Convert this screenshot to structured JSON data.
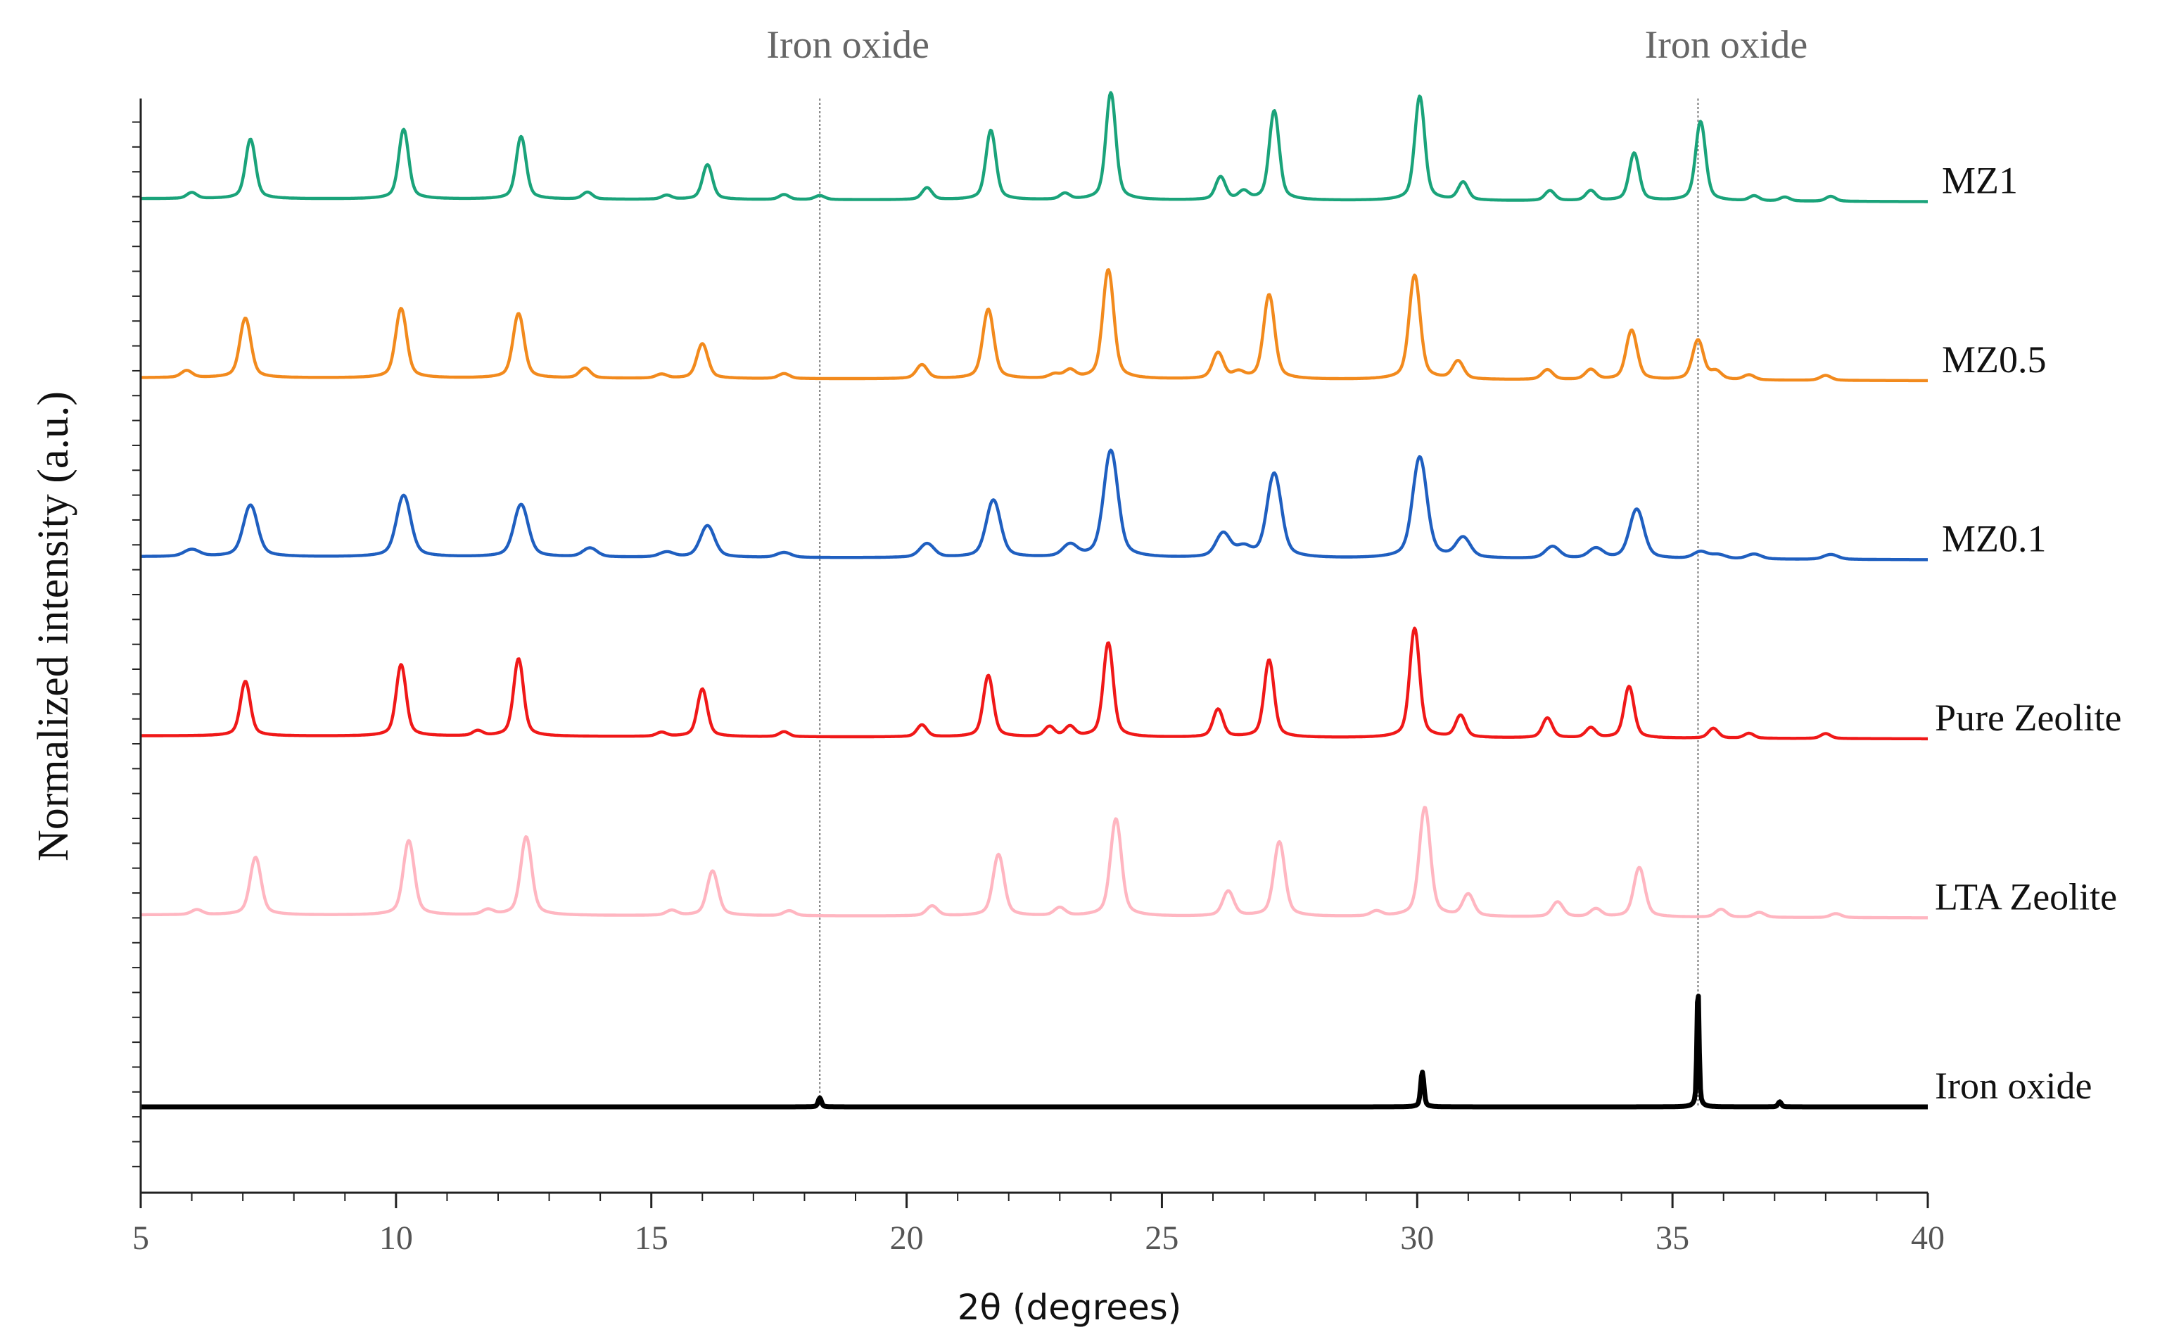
{
  "chart_data": {
    "type": "line",
    "title": "",
    "xlabel": "2θ (degrees)",
    "ylabel": "Normalized intensity (a.u.)",
    "xlim": [
      5,
      40
    ],
    "ylim": [
      0,
      11
    ],
    "x_ticks": [
      "5",
      "10",
      "15",
      "20",
      "25",
      "30",
      "35",
      "40"
    ],
    "x_tick_values": [
      5,
      10,
      15,
      20,
      25,
      30,
      35,
      40
    ],
    "y_tick_labels_visible": false,
    "grid": false,
    "reference_lines": [
      {
        "x": 18.3,
        "label": "Iron oxide"
      },
      {
        "x": 35.5,
        "label": "Iron oxide"
      }
    ],
    "series": [
      {
        "name": "MZ1",
        "color": "#1aa37a",
        "baseline": 9.1,
        "stroke": 2.2,
        "peaks": [
          [
            6.0,
            0.06,
            0.09
          ],
          [
            7.15,
            0.6,
            0.09
          ],
          [
            10.15,
            0.7,
            0.09
          ],
          [
            12.45,
            0.63,
            0.09
          ],
          [
            13.75,
            0.07,
            0.09
          ],
          [
            15.3,
            0.04,
            0.09
          ],
          [
            16.1,
            0.35,
            0.09
          ],
          [
            17.6,
            0.05,
            0.09
          ],
          [
            18.3,
            0.04,
            0.09
          ],
          [
            20.4,
            0.12,
            0.09
          ],
          [
            21.65,
            0.7,
            0.09
          ],
          [
            23.1,
            0.06,
            0.09
          ],
          [
            24.0,
            1.08,
            0.09
          ],
          [
            26.15,
            0.23,
            0.09
          ],
          [
            26.6,
            0.08,
            0.09
          ],
          [
            27.2,
            0.9,
            0.09
          ],
          [
            30.05,
            1.05,
            0.09
          ],
          [
            30.9,
            0.18,
            0.09
          ],
          [
            32.6,
            0.1,
            0.09
          ],
          [
            33.4,
            0.1,
            0.09
          ],
          [
            34.25,
            0.48,
            0.09
          ],
          [
            35.55,
            0.8,
            0.09
          ],
          [
            36.6,
            0.05,
            0.09
          ],
          [
            37.2,
            0.04,
            0.09
          ],
          [
            38.1,
            0.05,
            0.09
          ]
        ]
      },
      {
        "name": "MZ0.5",
        "color": "#f28a1d",
        "baseline": 7.3,
        "stroke": 2.2,
        "peaks": [
          [
            5.9,
            0.07,
            0.1
          ],
          [
            7.05,
            0.6,
            0.1
          ],
          [
            10.1,
            0.7,
            0.1
          ],
          [
            12.4,
            0.65,
            0.1
          ],
          [
            13.7,
            0.1,
            0.1
          ],
          [
            15.2,
            0.04,
            0.1
          ],
          [
            16.0,
            0.35,
            0.1
          ],
          [
            17.6,
            0.05,
            0.1
          ],
          [
            20.3,
            0.14,
            0.1
          ],
          [
            21.6,
            0.7,
            0.1
          ],
          [
            22.9,
            0.04,
            0.1
          ],
          [
            23.2,
            0.08,
            0.1
          ],
          [
            23.95,
            1.1,
            0.1
          ],
          [
            26.1,
            0.26,
            0.1
          ],
          [
            26.5,
            0.06,
            0.1
          ],
          [
            27.1,
            0.85,
            0.1
          ],
          [
            29.95,
            1.05,
            0.1
          ],
          [
            30.8,
            0.18,
            0.1
          ],
          [
            32.55,
            0.1,
            0.1
          ],
          [
            33.4,
            0.1,
            0.1
          ],
          [
            34.2,
            0.5,
            0.1
          ],
          [
            35.5,
            0.4,
            0.1
          ],
          [
            35.85,
            0.08,
            0.1
          ],
          [
            36.5,
            0.05,
            0.1
          ],
          [
            38.0,
            0.05,
            0.1
          ]
        ]
      },
      {
        "name": "MZ0.1",
        "color": "#1f5fc0",
        "baseline": 5.5,
        "stroke": 2.2,
        "peaks": [
          [
            6.0,
            0.07,
            0.14
          ],
          [
            7.15,
            0.52,
            0.13
          ],
          [
            10.15,
            0.62,
            0.13
          ],
          [
            12.45,
            0.53,
            0.13
          ],
          [
            13.8,
            0.09,
            0.13
          ],
          [
            15.3,
            0.05,
            0.13
          ],
          [
            16.1,
            0.32,
            0.13
          ],
          [
            17.6,
            0.05,
            0.13
          ],
          [
            20.4,
            0.14,
            0.13
          ],
          [
            21.7,
            0.58,
            0.13
          ],
          [
            23.2,
            0.12,
            0.13
          ],
          [
            24.0,
            1.08,
            0.13
          ],
          [
            26.2,
            0.24,
            0.13
          ],
          [
            26.6,
            0.09,
            0.13
          ],
          [
            27.2,
            0.85,
            0.13
          ],
          [
            30.05,
            1.02,
            0.13
          ],
          [
            30.9,
            0.2,
            0.13
          ],
          [
            32.65,
            0.12,
            0.13
          ],
          [
            33.5,
            0.1,
            0.13
          ],
          [
            34.3,
            0.5,
            0.13
          ],
          [
            35.55,
            0.07,
            0.13
          ],
          [
            35.9,
            0.04,
            0.13
          ],
          [
            36.6,
            0.05,
            0.13
          ],
          [
            38.1,
            0.05,
            0.13
          ]
        ]
      },
      {
        "name": "Pure Zeolite",
        "color": "#f01818",
        "baseline": 3.7,
        "stroke": 2.2,
        "peaks": [
          [
            7.05,
            0.55,
            0.09
          ],
          [
            10.1,
            0.72,
            0.09
          ],
          [
            11.6,
            0.05,
            0.09
          ],
          [
            12.4,
            0.78,
            0.09
          ],
          [
            15.2,
            0.04,
            0.09
          ],
          [
            16.0,
            0.48,
            0.09
          ],
          [
            17.6,
            0.05,
            0.09
          ],
          [
            20.3,
            0.12,
            0.09
          ],
          [
            21.6,
            0.62,
            0.09
          ],
          [
            22.8,
            0.1,
            0.09
          ],
          [
            23.2,
            0.1,
            0.09
          ],
          [
            23.95,
            0.95,
            0.09
          ],
          [
            26.1,
            0.28,
            0.09
          ],
          [
            27.1,
            0.78,
            0.09
          ],
          [
            29.95,
            1.1,
            0.09
          ],
          [
            30.85,
            0.22,
            0.09
          ],
          [
            32.55,
            0.2,
            0.09
          ],
          [
            33.4,
            0.1,
            0.09
          ],
          [
            34.15,
            0.52,
            0.09
          ],
          [
            35.8,
            0.1,
            0.09
          ],
          [
            36.5,
            0.05,
            0.09
          ],
          [
            38.0,
            0.05,
            0.09
          ]
        ]
      },
      {
        "name": "LTA Zeolite",
        "color": "#ffb6c1",
        "baseline": 1.9,
        "stroke": 2.2,
        "peaks": [
          [
            6.1,
            0.05,
            0.1
          ],
          [
            7.25,
            0.58,
            0.1
          ],
          [
            10.25,
            0.75,
            0.1
          ],
          [
            11.8,
            0.05,
            0.1
          ],
          [
            12.55,
            0.79,
            0.1
          ],
          [
            15.4,
            0.05,
            0.1
          ],
          [
            16.2,
            0.45,
            0.1
          ],
          [
            17.7,
            0.05,
            0.1
          ],
          [
            20.5,
            0.1,
            0.1
          ],
          [
            21.8,
            0.62,
            0.1
          ],
          [
            23.0,
            0.08,
            0.1
          ],
          [
            24.1,
            0.98,
            0.1
          ],
          [
            26.3,
            0.25,
            0.1
          ],
          [
            27.3,
            0.75,
            0.1
          ],
          [
            29.2,
            0.05,
            0.1
          ],
          [
            30.15,
            1.1,
            0.1
          ],
          [
            31.0,
            0.22,
            0.1
          ],
          [
            32.75,
            0.15,
            0.1
          ],
          [
            33.5,
            0.08,
            0.1
          ],
          [
            34.35,
            0.5,
            0.1
          ],
          [
            35.95,
            0.08,
            0.1
          ],
          [
            36.7,
            0.05,
            0.1
          ],
          [
            38.2,
            0.04,
            0.1
          ]
        ]
      },
      {
        "name": "Iron oxide",
        "color": "#000000",
        "baseline": 0.0,
        "stroke": 3.5,
        "peaks": [
          [
            18.3,
            0.09,
            0.03
          ],
          [
            30.1,
            0.35,
            0.03
          ],
          [
            35.5,
            1.2,
            0.02
          ],
          [
            37.1,
            0.05,
            0.03
          ]
        ]
      }
    ]
  }
}
